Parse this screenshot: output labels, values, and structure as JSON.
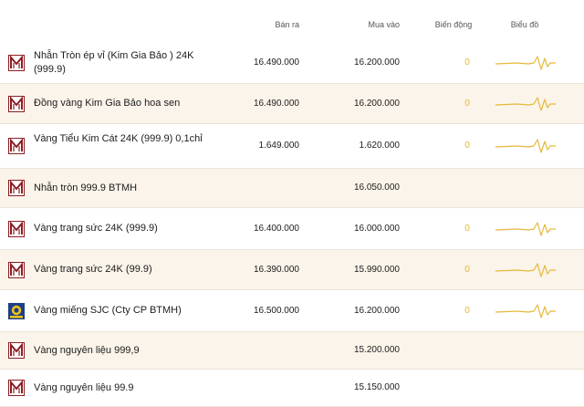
{
  "columns": {
    "sell": "Bán ra",
    "buy": "Mua vào",
    "change": "Biến động",
    "chart": "Biểu đồ"
  },
  "colors": {
    "accent": "#e6b93a",
    "brand": "#8c1d22",
    "row_alt": "#fbf4ea"
  },
  "rows": [
    {
      "logo": "btmh-logo-icon",
      "name": "Nhẫn Tròn ép vỉ (Kim Gia Bảo ) 24K (999.9)",
      "sell": "16.490.000",
      "buy": "16.200.000",
      "change": "0",
      "has_chart": true
    },
    {
      "logo": "btmh-logo-icon",
      "name": "Đồng vàng Kim Gia Bảo hoa sen",
      "sell": "16.490.000",
      "buy": "16.200.000",
      "change": "0",
      "has_chart": true
    },
    {
      "logo": "btmh-logo-icon",
      "name": "Vàng Tiểu Kim Cát 24K (999.9) 0,1chỉ",
      "sell": "1.649.000",
      "buy": "1.620.000",
      "change": "0",
      "has_chart": true
    },
    {
      "logo": "btmh-logo-icon",
      "name": "Nhẫn tròn 999.9 BTMH",
      "sell": "",
      "buy": "16.050.000",
      "change": "",
      "has_chart": false
    },
    {
      "logo": "btmh-logo-icon",
      "name": "Vàng trang sức 24K (999.9)",
      "sell": "16.400.000",
      "buy": "16.000.000",
      "change": "0",
      "has_chart": true
    },
    {
      "logo": "btmh-logo-icon",
      "name": "Vàng trang sức 24K (99.9)",
      "sell": "16.390.000",
      "buy": "15.990.000",
      "change": "0",
      "has_chart": true
    },
    {
      "logo": "sjc-logo-icon",
      "name": "Vàng miếng SJC (Cty CP BTMH)",
      "sell": "16.500.000",
      "buy": "16.200.000",
      "change": "0",
      "has_chart": true
    },
    {
      "logo": "btmh-logo-icon",
      "name": "Vàng nguyên liệu 999,9",
      "sell": "",
      "buy": "15.200.000",
      "change": "",
      "has_chart": false
    },
    {
      "logo": "btmh-logo-icon",
      "name": "Vàng nguyên liệu 99.9",
      "sell": "",
      "buy": "15.150.000",
      "change": "",
      "has_chart": false
    }
  ]
}
